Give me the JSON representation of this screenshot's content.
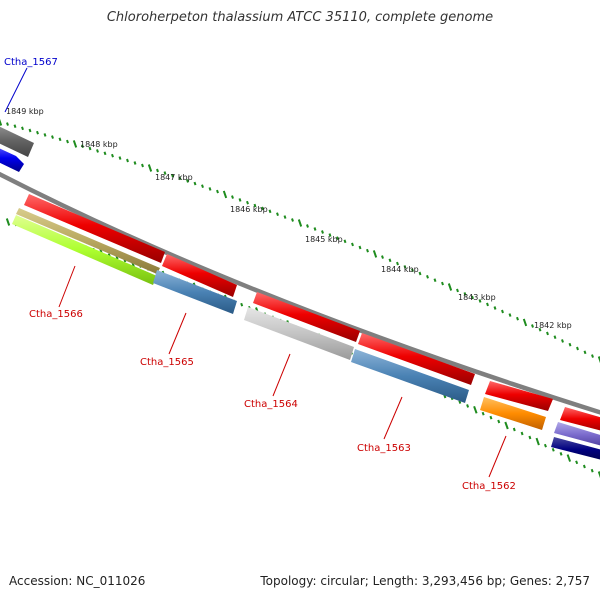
{
  "title": "Chloroherpeton thalassium ATCC 35110, complete genome",
  "footer": {
    "accession": "Accession: NC_011026",
    "topology": "Topology: circular; Length: 3,293,456 bp; Genes: 2,757"
  },
  "colors": {
    "backbone": "#7f7f7f",
    "tick": "#1e8c1e",
    "forward_cds": "#ee0000",
    "label_red": "#cc0000",
    "label_blue": "#0000cc"
  },
  "kbp_labels": [
    "1849 kbp",
    "1848 kbp",
    "1847 kbp",
    "1846 kbp",
    "1845 kbp",
    "1844 kbp",
    "1843 kbp",
    "1842 kbp"
  ],
  "gene_labels": [
    "Ctha_1567",
    "Ctha_1566",
    "Ctha_1565",
    "Ctha_1564",
    "Ctha_1563",
    "Ctha_1562"
  ]
}
